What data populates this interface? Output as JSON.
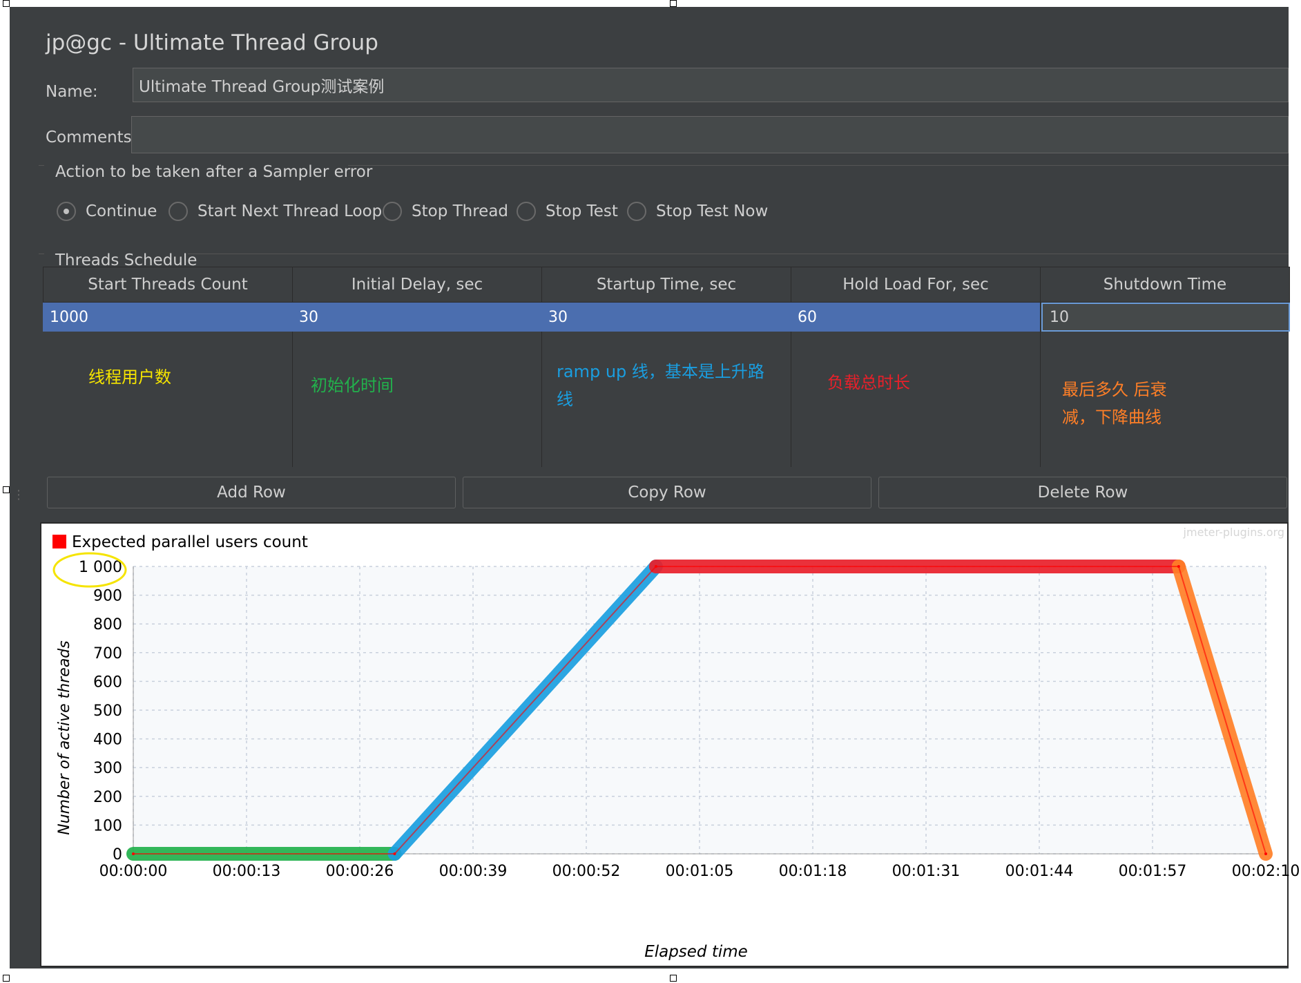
{
  "window": {
    "title": "jp@gc - Ultimate Thread Group"
  },
  "form": {
    "name_label": "Name:",
    "name_value": "Ultimate Thread Group测试案例",
    "comments_label": "Comments:",
    "comments_value": ""
  },
  "sampler_error": {
    "legend": "Action to be taken after a Sampler error",
    "options": [
      {
        "label": "Continue",
        "selected": true
      },
      {
        "label": "Start Next Thread Loop",
        "selected": false
      },
      {
        "label": "Stop Thread",
        "selected": false
      },
      {
        "label": "Stop Test",
        "selected": false
      },
      {
        "label": "Stop Test Now",
        "selected": false
      }
    ]
  },
  "schedule": {
    "legend": "Threads Schedule",
    "columns": [
      "Start Threads Count",
      "Initial Delay, sec",
      "Startup Time, sec",
      "Hold Load For, sec",
      "Shutdown Time"
    ],
    "rows": [
      [
        "1000",
        "30",
        "30",
        "60",
        "10"
      ]
    ]
  },
  "annotations": [
    {
      "text": "线程用户数",
      "color": "#f5e400"
    },
    {
      "text": "初始化时间",
      "color": "#22b14c"
    },
    {
      "text": "ramp up 线，基本是上升路线",
      "color": "#1a9ee0"
    },
    {
      "text": "负载总时长",
      "color": "#e8202a"
    },
    {
      "text": "最后多久 后衰减，下降曲线",
      "color": "#ff7f27"
    }
  ],
  "buttons": {
    "add": "Add Row",
    "copy": "Copy Row",
    "delete": "Delete Row"
  },
  "chart_data": {
    "type": "line",
    "watermark": "jmeter-plugins.org",
    "legend": "Expected parallel users count",
    "legend_color": "#ff0000",
    "xlabel": "Elapsed time",
    "ylabel": "Number of active threads",
    "x_ticks": [
      "00:00:00",
      "00:00:13",
      "00:00:26",
      "00:00:39",
      "00:00:52",
      "00:01:05",
      "00:01:18",
      "00:01:31",
      "00:01:44",
      "00:01:57",
      "00:02:10"
    ],
    "y_ticks": [
      "0",
      "100",
      "200",
      "300",
      "400",
      "500",
      "600",
      "700",
      "800",
      "900",
      "1 000"
    ],
    "xlim": [
      0,
      130
    ],
    "ylim": [
      0,
      1000
    ],
    "grid": true,
    "series": [
      {
        "name": "Expected parallel users count",
        "x": [
          0,
          30,
          60,
          120,
          130
        ],
        "y": [
          0,
          0,
          1000,
          1000,
          0
        ]
      }
    ],
    "highlights": [
      {
        "from": 0,
        "to": 30,
        "color": "#22b14c"
      },
      {
        "from": 30,
        "to": 60,
        "color": "#1a9ee0"
      },
      {
        "from": 60,
        "to": 120,
        "color": "#e8202a"
      },
      {
        "from": 120,
        "to": 130,
        "color": "#ff7f27"
      }
    ],
    "circle_mark": {
      "label": "1 000",
      "color": "#f5e400"
    }
  }
}
